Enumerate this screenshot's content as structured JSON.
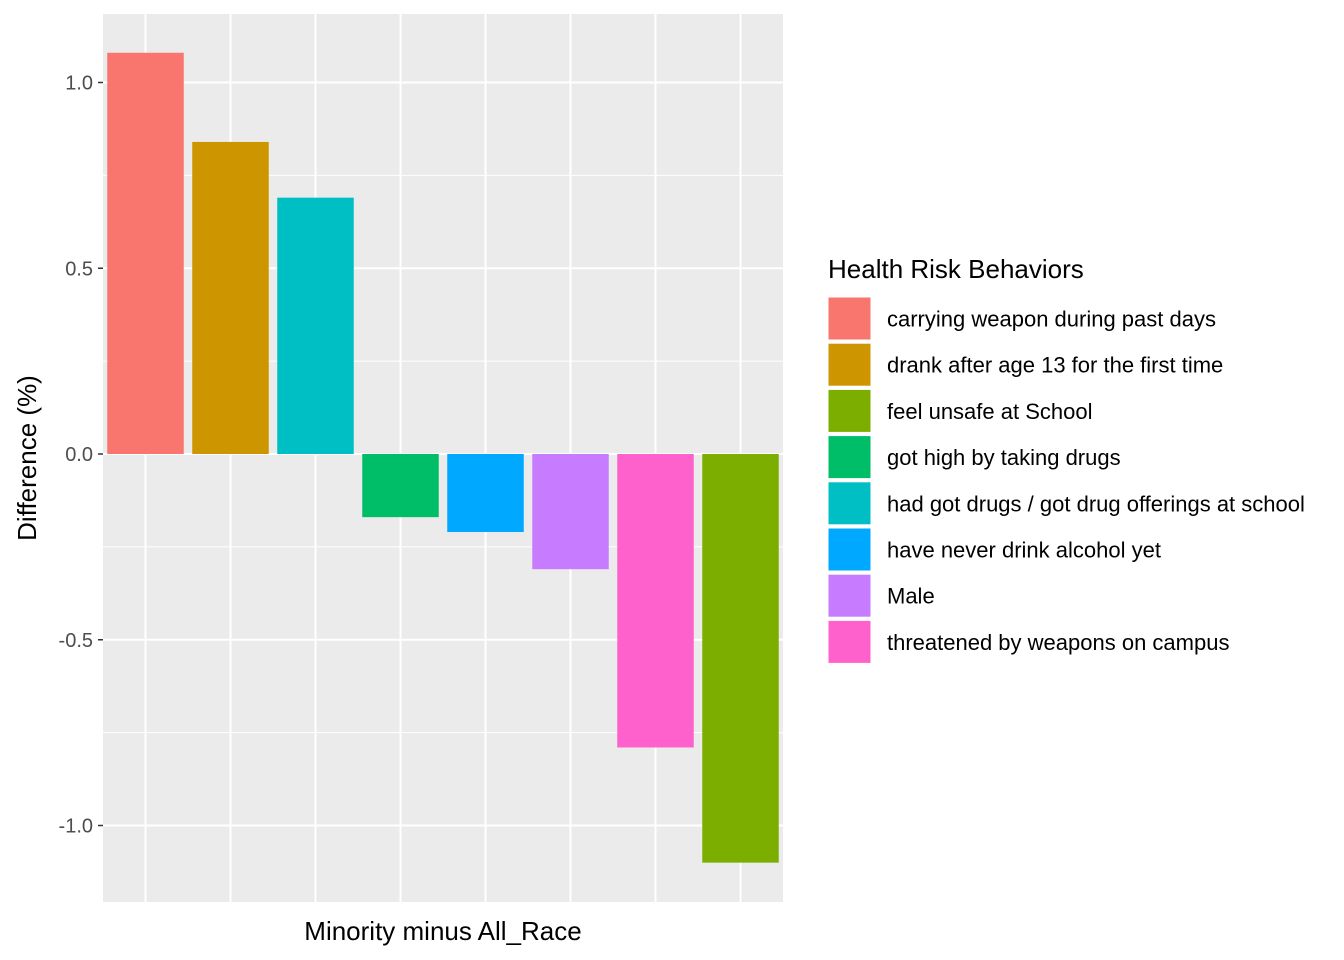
{
  "chart_data": {
    "type": "bar",
    "xlabel": "Minority minus All_Race",
    "ylabel": "Difference (%)",
    "ylim": [
      -1.2,
      1.2
    ],
    "yticks": [
      1.0,
      0.5,
      0.0,
      -0.5,
      -1.0
    ],
    "ytick_labels": [
      "1.0",
      "0.5",
      "0.0",
      "-0.5",
      "-1.0"
    ],
    "grid": true,
    "legend_position": "right",
    "legend_title": "Health Risk Behaviors",
    "legend": [
      {
        "label": "carrying weapon during past days",
        "color": "#F8766D"
      },
      {
        "label": "drank after age 13 for the first time",
        "color": "#CD9600"
      },
      {
        "label": "feel unsafe at School",
        "color": "#7CAE00"
      },
      {
        "label": "got high by taking drugs",
        "color": "#00BE67"
      },
      {
        "label": "had got drugs / got drug offerings at school",
        "color": "#00BFC4"
      },
      {
        "label": "have never drink alcohol yet",
        "color": "#00A9FF"
      },
      {
        "label": "Male",
        "color": "#C77CFF"
      },
      {
        "label": "threatened by weapons on campus",
        "color": "#FF61CC"
      }
    ],
    "series": [
      {
        "category": "carrying weapon during past days",
        "value": 1.08
      },
      {
        "category": "drank after age 13 for the first time",
        "value": 0.84
      },
      {
        "category": "had got drugs / got drug offerings at school",
        "value": 0.69
      },
      {
        "category": "got high by taking drugs",
        "value": -0.17
      },
      {
        "category": "have never drink alcohol yet",
        "value": -0.21
      },
      {
        "category": "Male",
        "value": -0.31
      },
      {
        "category": "threatened by weapons on campus",
        "value": -0.79
      },
      {
        "category": "feel unsafe at School",
        "value": -1.1
      }
    ]
  }
}
